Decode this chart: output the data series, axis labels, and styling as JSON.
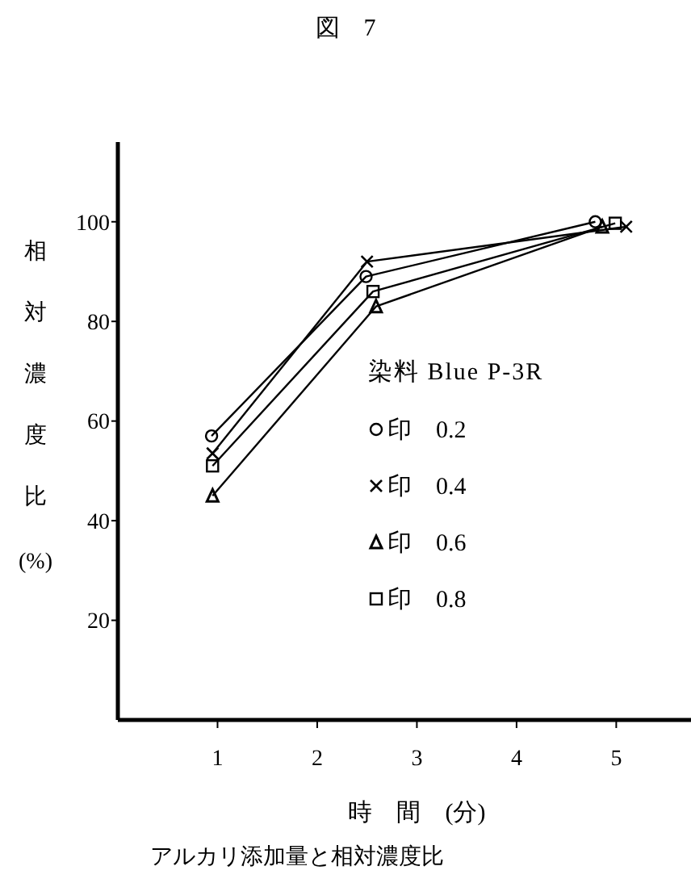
{
  "chart_data": {
    "type": "line",
    "title": "図　7",
    "xlabel": "時　間　(分)",
    "ylabel": "相対濃度比(%)",
    "legend_title": "染料 Blue P-3R",
    "annotations": [
      "アルカリ添加量と相対濃度比"
    ],
    "xlim": [
      0,
      5.75
    ],
    "xticks": [
      1,
      2,
      3,
      4,
      5
    ],
    "ylim": [
      0,
      116
    ],
    "yticks": [
      20,
      40,
      60,
      80,
      100
    ],
    "grid": false,
    "legend": "right",
    "line_style": "solid",
    "series": [
      {
        "name": "印　0.2",
        "color": "#000000",
        "marker": "circle",
        "x": [
          0.94,
          2.49,
          4.79
        ],
        "values": [
          57,
          89,
          100
        ]
      },
      {
        "name": "印　0.4",
        "color": "#000000",
        "marker": "cross",
        "x": [
          0.95,
          2.5,
          5.1
        ],
        "values": [
          53.5,
          92,
          99
        ]
      },
      {
        "name": "印　0.6",
        "color": "#000000",
        "marker": "triangle",
        "x": [
          0.95,
          2.59,
          4.86
        ],
        "values": [
          45,
          83,
          99
        ]
      },
      {
        "name": "印　0.8",
        "color": "#000000",
        "marker": "square",
        "x": [
          0.95,
          2.56,
          4.99
        ],
        "values": [
          51,
          86,
          99.7
        ]
      }
    ]
  }
}
